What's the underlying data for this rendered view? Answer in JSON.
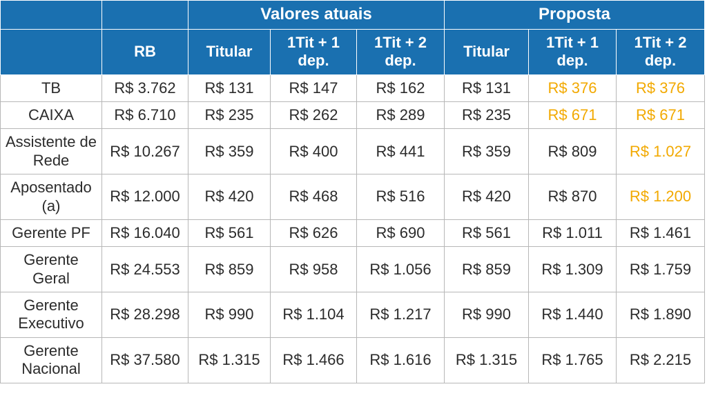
{
  "header": {
    "group_current": "Valores atuais",
    "group_proposal": "Proposta",
    "col_rb": "RB",
    "col_titular": "Titular",
    "col_1dep": "1Tit + 1 dep.",
    "col_2dep": "1Tit + 2 dep."
  },
  "colors": {
    "header_bg": "#1a70b0",
    "header_text": "#ffffff",
    "cell_text": "#2b2b2b",
    "highlight_text": "#f2a900",
    "border": "#b7b7b7"
  },
  "typography": {
    "font_family": "Segoe UI / Helvetica Neue / Arial",
    "cell_fontsize_pt": 17,
    "header_fontsize_pt": 18
  },
  "rows": [
    {
      "label": "TB",
      "rb": "R$ 3.762",
      "cur_tit": "R$ 131",
      "cur_1dep": "R$ 147",
      "cur_2dep": "R$ 162",
      "prop_tit": "R$ 131",
      "prop_1dep": "R$ 376",
      "prop_2dep": "R$ 376",
      "hl_1dep": true,
      "hl_2dep": true
    },
    {
      "label": "CAIXA",
      "rb": "R$ 6.710",
      "cur_tit": "R$ 235",
      "cur_1dep": "R$ 262",
      "cur_2dep": "R$ 289",
      "prop_tit": "R$ 235",
      "prop_1dep": "R$ 671",
      "prop_2dep": "R$ 671",
      "hl_1dep": true,
      "hl_2dep": true
    },
    {
      "label": "Assistente de Rede",
      "rb": "R$ 10.267",
      "cur_tit": "R$ 359",
      "cur_1dep": "R$ 400",
      "cur_2dep": "R$ 441",
      "prop_tit": "R$ 359",
      "prop_1dep": "R$ 809",
      "prop_2dep": "R$ 1.027",
      "hl_1dep": false,
      "hl_2dep": true
    },
    {
      "label": "Aposentado (a)",
      "rb": "R$ 12.000",
      "cur_tit": "R$ 420",
      "cur_1dep": "R$ 468",
      "cur_2dep": "R$ 516",
      "prop_tit": "R$ 420",
      "prop_1dep": "R$ 870",
      "prop_2dep": "R$ 1.200",
      "hl_1dep": false,
      "hl_2dep": true
    },
    {
      "label": "Gerente PF",
      "rb": "R$ 16.040",
      "cur_tit": "R$ 561",
      "cur_1dep": "R$ 626",
      "cur_2dep": "R$ 690",
      "prop_tit": "R$ 561",
      "prop_1dep": "R$ 1.011",
      "prop_2dep": "R$ 1.461",
      "hl_1dep": false,
      "hl_2dep": false
    },
    {
      "label": "Gerente Geral",
      "rb": "R$ 24.553",
      "cur_tit": "R$ 859",
      "cur_1dep": "R$ 958",
      "cur_2dep": "R$ 1.056",
      "prop_tit": "R$ 859",
      "prop_1dep": "R$ 1.309",
      "prop_2dep": "R$ 1.759",
      "hl_1dep": false,
      "hl_2dep": false
    },
    {
      "label": "Gerente Executivo",
      "rb": "R$ 28.298",
      "cur_tit": "R$ 990",
      "cur_1dep": "R$ 1.104",
      "cur_2dep": "R$ 1.217",
      "prop_tit": "R$ 990",
      "prop_1dep": "R$ 1.440",
      "prop_2dep": "R$ 1.890",
      "hl_1dep": false,
      "hl_2dep": false
    },
    {
      "label": "Gerente Nacional",
      "rb": "R$ 37.580",
      "cur_tit": "R$ 1.315",
      "cur_1dep": "R$ 1.466",
      "cur_2dep": "R$ 1.616",
      "prop_tit": "R$ 1.315",
      "prop_1dep": "R$ 1.765",
      "prop_2dep": "R$ 2.215",
      "hl_1dep": false,
      "hl_2dep": false
    }
  ]
}
